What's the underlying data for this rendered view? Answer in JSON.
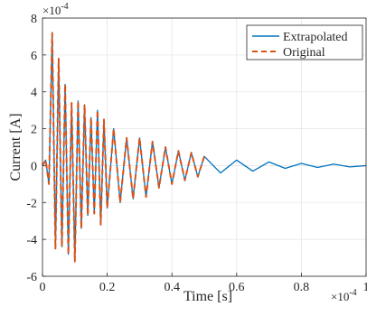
{
  "chart_data": {
    "type": "line",
    "xlabel": "Time [s]",
    "ylabel": "Current [A]",
    "x_exponent_base": "×10",
    "x_exponent_power": "-4",
    "y_exponent_base": "×10",
    "y_exponent_power": "-4",
    "xlim": [
      0,
      1
    ],
    "ylim": [
      -6,
      8
    ],
    "x_scale_note": "x values in units of 1e-4 s, y values in units of 1e-4 A",
    "xticks": [
      0,
      0.2,
      0.4,
      0.6,
      0.8,
      1
    ],
    "xtick_labels": [
      "0",
      "0.2",
      "0.4",
      "0.6",
      "0.8",
      "1"
    ],
    "yticks": [
      -6,
      -4,
      -2,
      0,
      2,
      4,
      6,
      8
    ],
    "ytick_labels": [
      "-6",
      "-4",
      "-2",
      "0",
      "2",
      "4",
      "6",
      "8"
    ],
    "grid": true,
    "legend_position": "top-right",
    "series": [
      {
        "name": "Extrapolated",
        "color": "#0072BD",
        "style": "solid",
        "x_range": [
          0,
          1
        ],
        "peaks": [
          [
            0.0,
            0.0
          ],
          [
            0.01,
            0.3
          ],
          [
            0.02,
            -1.0
          ],
          [
            0.03,
            7.2
          ],
          [
            0.04,
            -4.5
          ],
          [
            0.05,
            5.8
          ],
          [
            0.06,
            -4.4
          ],
          [
            0.07,
            4.4
          ],
          [
            0.08,
            -4.8
          ],
          [
            0.09,
            3.4
          ],
          [
            0.1,
            -5.2
          ],
          [
            0.11,
            3.5
          ],
          [
            0.12,
            -3.4
          ],
          [
            0.13,
            3.3
          ],
          [
            0.14,
            -2.7
          ],
          [
            0.15,
            2.6
          ],
          [
            0.16,
            -2.6
          ],
          [
            0.17,
            3.0
          ],
          [
            0.18,
            -3.2
          ],
          [
            0.19,
            2.5
          ],
          [
            0.2,
            -2.3
          ],
          [
            0.22,
            2.0
          ],
          [
            0.24,
            -2.0
          ],
          [
            0.26,
            1.5
          ],
          [
            0.28,
            -1.8
          ],
          [
            0.3,
            1.5
          ],
          [
            0.32,
            -1.7
          ],
          [
            0.34,
            1.3
          ],
          [
            0.36,
            -1.2
          ],
          [
            0.38,
            1.0
          ],
          [
            0.4,
            -1.0
          ],
          [
            0.42,
            0.8
          ],
          [
            0.44,
            -0.8
          ],
          [
            0.46,
            0.7
          ],
          [
            0.48,
            -0.6
          ],
          [
            0.5,
            0.5
          ],
          [
            0.55,
            -0.4
          ],
          [
            0.6,
            0.3
          ],
          [
            0.65,
            -0.3
          ],
          [
            0.7,
            0.2
          ],
          [
            0.75,
            -0.15
          ],
          [
            0.8,
            0.12
          ],
          [
            0.85,
            -0.1
          ],
          [
            0.9,
            0.08
          ],
          [
            0.95,
            -0.07
          ],
          [
            1.0,
            0.0
          ]
        ]
      },
      {
        "name": "Original",
        "color": "#D95319",
        "style": "dashed",
        "x_range": [
          0,
          0.5
        ],
        "peaks": [
          [
            0.0,
            0.0
          ],
          [
            0.01,
            0.3
          ],
          [
            0.02,
            -1.0
          ],
          [
            0.03,
            7.2
          ],
          [
            0.04,
            -4.5
          ],
          [
            0.05,
            5.8
          ],
          [
            0.06,
            -4.4
          ],
          [
            0.07,
            4.4
          ],
          [
            0.08,
            -4.8
          ],
          [
            0.09,
            3.4
          ],
          [
            0.1,
            -5.2
          ],
          [
            0.11,
            3.5
          ],
          [
            0.12,
            -3.4
          ],
          [
            0.13,
            3.3
          ],
          [
            0.14,
            -2.7
          ],
          [
            0.15,
            2.6
          ],
          [
            0.16,
            -2.6
          ],
          [
            0.17,
            3.0
          ],
          [
            0.18,
            -3.2
          ],
          [
            0.19,
            2.5
          ],
          [
            0.2,
            -2.3
          ],
          [
            0.22,
            2.0
          ],
          [
            0.24,
            -2.0
          ],
          [
            0.26,
            1.5
          ],
          [
            0.28,
            -1.8
          ],
          [
            0.3,
            1.5
          ],
          [
            0.32,
            -1.7
          ],
          [
            0.34,
            1.3
          ],
          [
            0.36,
            -1.2
          ],
          [
            0.38,
            1.0
          ],
          [
            0.4,
            -1.0
          ],
          [
            0.42,
            0.8
          ],
          [
            0.44,
            -0.8
          ],
          [
            0.46,
            0.7
          ],
          [
            0.48,
            -0.6
          ],
          [
            0.5,
            0.5
          ]
        ]
      }
    ]
  }
}
